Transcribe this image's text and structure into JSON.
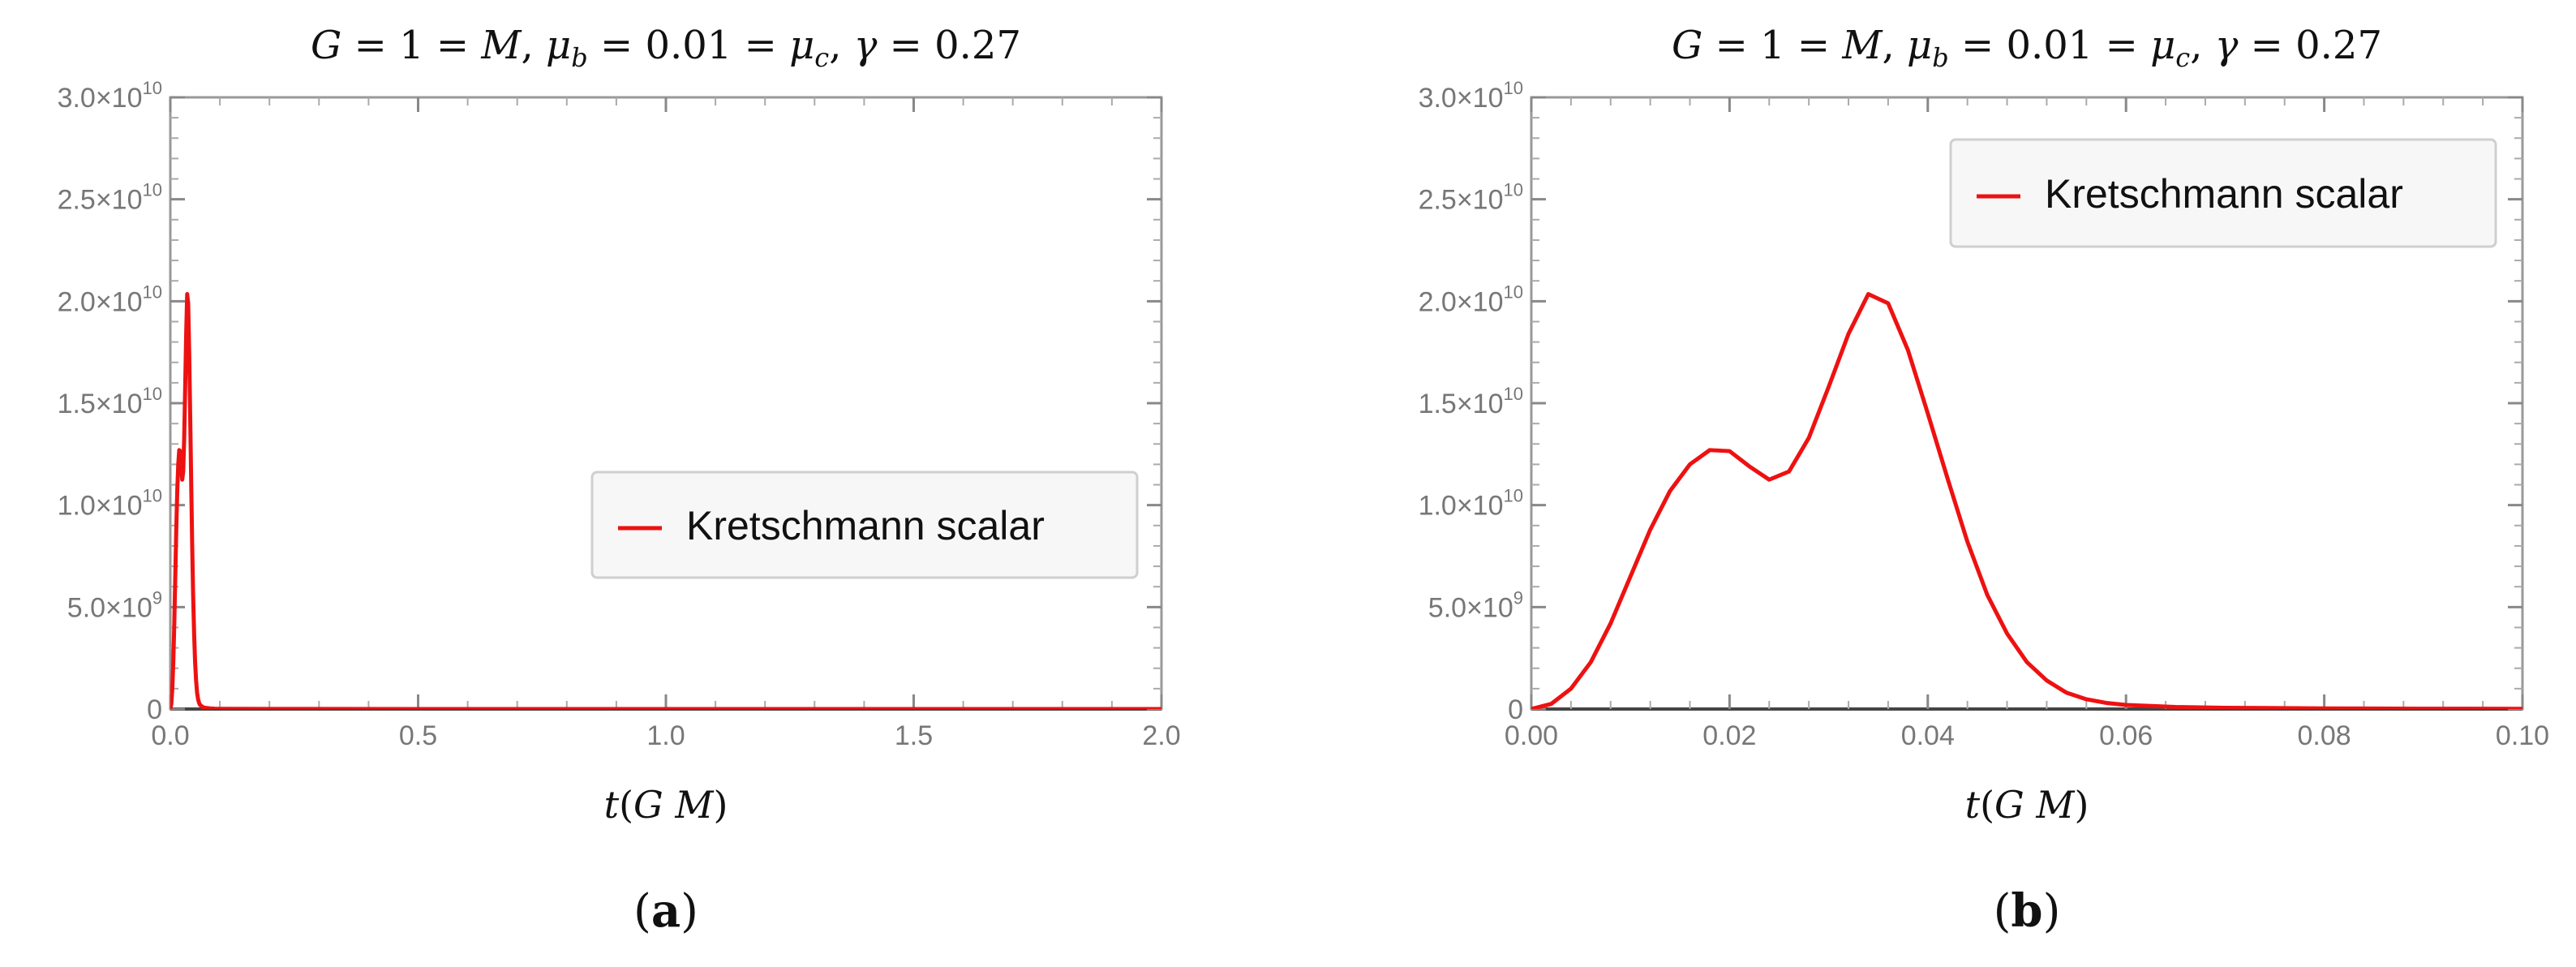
{
  "chart_data": [
    {
      "type": "line",
      "panel_label": "a",
      "title_parts": {
        "G": "G",
        "eq1": " = 1 = ",
        "M": "M",
        "mu_b": "μ",
        "sub_b": "b",
        "eq2": " = 0.01 = ",
        "mu_c": "μ",
        "sub_c": "c",
        "gamma": "γ",
        "eq3": " = 0.27",
        "comma": ", "
      },
      "xlabel_parts": {
        "t": "t",
        "open": "(",
        "GM": "G M",
        "close": ")"
      },
      "xlim": [
        0,
        2.0
      ],
      "ylim": [
        0,
        30000000000
      ],
      "x_ticks": [
        0.0,
        0.5,
        1.0,
        1.5,
        2.0
      ],
      "x_tick_labels": [
        "0.0",
        "0.5",
        "1.0",
        "1.5",
        "2.0"
      ],
      "y_ticks": [
        0,
        5000000000,
        10000000000,
        15000000000,
        20000000000,
        25000000000,
        30000000000
      ],
      "y_tick_labels": [
        {
          "mant": "0",
          "sup": ""
        },
        {
          "mant": "5.0×10",
          "sup": "9"
        },
        {
          "mant": "1.0×10",
          "sup": "10"
        },
        {
          "mant": "1.5×10",
          "sup": "10"
        },
        {
          "mant": "2.0×10",
          "sup": "10"
        },
        {
          "mant": "2.5×10",
          "sup": "10"
        },
        {
          "mant": "3.0×10",
          "sup": "10"
        }
      ],
      "legend_placement": "center-right",
      "series": [
        {
          "name": "Kretschmann scalar",
          "color": "#ee1111",
          "x": [
            0,
            0.002,
            0.004,
            0.006,
            0.008,
            0.01,
            0.012,
            0.014,
            0.016,
            0.018,
            0.02,
            0.022,
            0.024,
            0.026,
            0.028,
            0.03,
            0.032,
            0.034,
            0.036,
            0.038,
            0.04,
            0.042,
            0.044,
            0.046,
            0.048,
            0.05,
            0.052,
            0.054,
            0.056,
            0.058,
            0.06,
            0.065,
            0.07,
            0.08,
            0.09,
            0.1,
            0.2,
            0.5,
            1.0,
            1.5,
            2.0
          ],
          "y": [
            0,
            250000000,
            1000000000,
            2300000000,
            4200000000,
            6500000000,
            8800000000,
            10700000000,
            12000000000,
            12700000000,
            12650000000,
            11900000000,
            11250000000,
            11650000000,
            13300000000,
            15800000000,
            18400000000,
            20350000000,
            19900000000,
            17600000000,
            14500000000,
            11300000000,
            8200000000,
            5600000000,
            3700000000,
            2300000000,
            1400000000,
            800000000,
            480000000,
            300000000,
            200000000,
            100000000,
            60000000,
            30000000,
            15000000,
            10000000,
            5000000,
            0,
            0,
            0,
            0
          ]
        }
      ]
    },
    {
      "type": "line",
      "panel_label": "b",
      "title_parts": {
        "G": "G",
        "eq1": " = 1 = ",
        "M": "M",
        "mu_b": "μ",
        "sub_b": "b",
        "eq2": " = 0.01 = ",
        "mu_c": "μ",
        "sub_c": "c",
        "gamma": "γ",
        "eq3": " = 0.27",
        "comma": ", "
      },
      "xlabel_parts": {
        "t": "t",
        "open": "(",
        "GM": "G M",
        "close": ")"
      },
      "xlim": [
        0,
        0.1
      ],
      "ylim": [
        0,
        30000000000
      ],
      "x_ticks": [
        0.0,
        0.02,
        0.04,
        0.06,
        0.08,
        0.1
      ],
      "x_tick_labels": [
        "0.00",
        "0.02",
        "0.04",
        "0.06",
        "0.08",
        "0.10"
      ],
      "y_ticks": [
        0,
        5000000000,
        10000000000,
        15000000000,
        20000000000,
        25000000000,
        30000000000
      ],
      "y_tick_labels": [
        {
          "mant": "0",
          "sup": ""
        },
        {
          "mant": "5.0×10",
          "sup": "9"
        },
        {
          "mant": "1.0×10",
          "sup": "10"
        },
        {
          "mant": "1.5×10",
          "sup": "10"
        },
        {
          "mant": "2.0×10",
          "sup": "10"
        },
        {
          "mant": "2.5×10",
          "sup": "10"
        },
        {
          "mant": "3.0×10",
          "sup": "10"
        }
      ],
      "legend_placement": "top-right",
      "series": [
        {
          "name": "Kretschmann scalar",
          "color": "#ee1111",
          "x": [
            0,
            0.002,
            0.004,
            0.006,
            0.008,
            0.01,
            0.012,
            0.014,
            0.016,
            0.018,
            0.02,
            0.022,
            0.024,
            0.026,
            0.028,
            0.03,
            0.032,
            0.034,
            0.036,
            0.038,
            0.04,
            0.042,
            0.044,
            0.046,
            0.048,
            0.05,
            0.052,
            0.054,
            0.056,
            0.058,
            0.06,
            0.065,
            0.07,
            0.08,
            0.09,
            0.1
          ],
          "y": [
            0,
            250000000,
            1000000000,
            2300000000,
            4200000000,
            6500000000,
            8800000000,
            10700000000,
            12000000000,
            12700000000,
            12650000000,
            11900000000,
            11250000000,
            11650000000,
            13300000000,
            15800000000,
            18400000000,
            20350000000,
            19900000000,
            17600000000,
            14500000000,
            11300000000,
            8200000000,
            5600000000,
            3700000000,
            2300000000,
            1400000000,
            800000000,
            480000000,
            300000000,
            200000000,
            100000000,
            60000000,
            30000000,
            15000000,
            10000000
          ]
        }
      ]
    }
  ]
}
